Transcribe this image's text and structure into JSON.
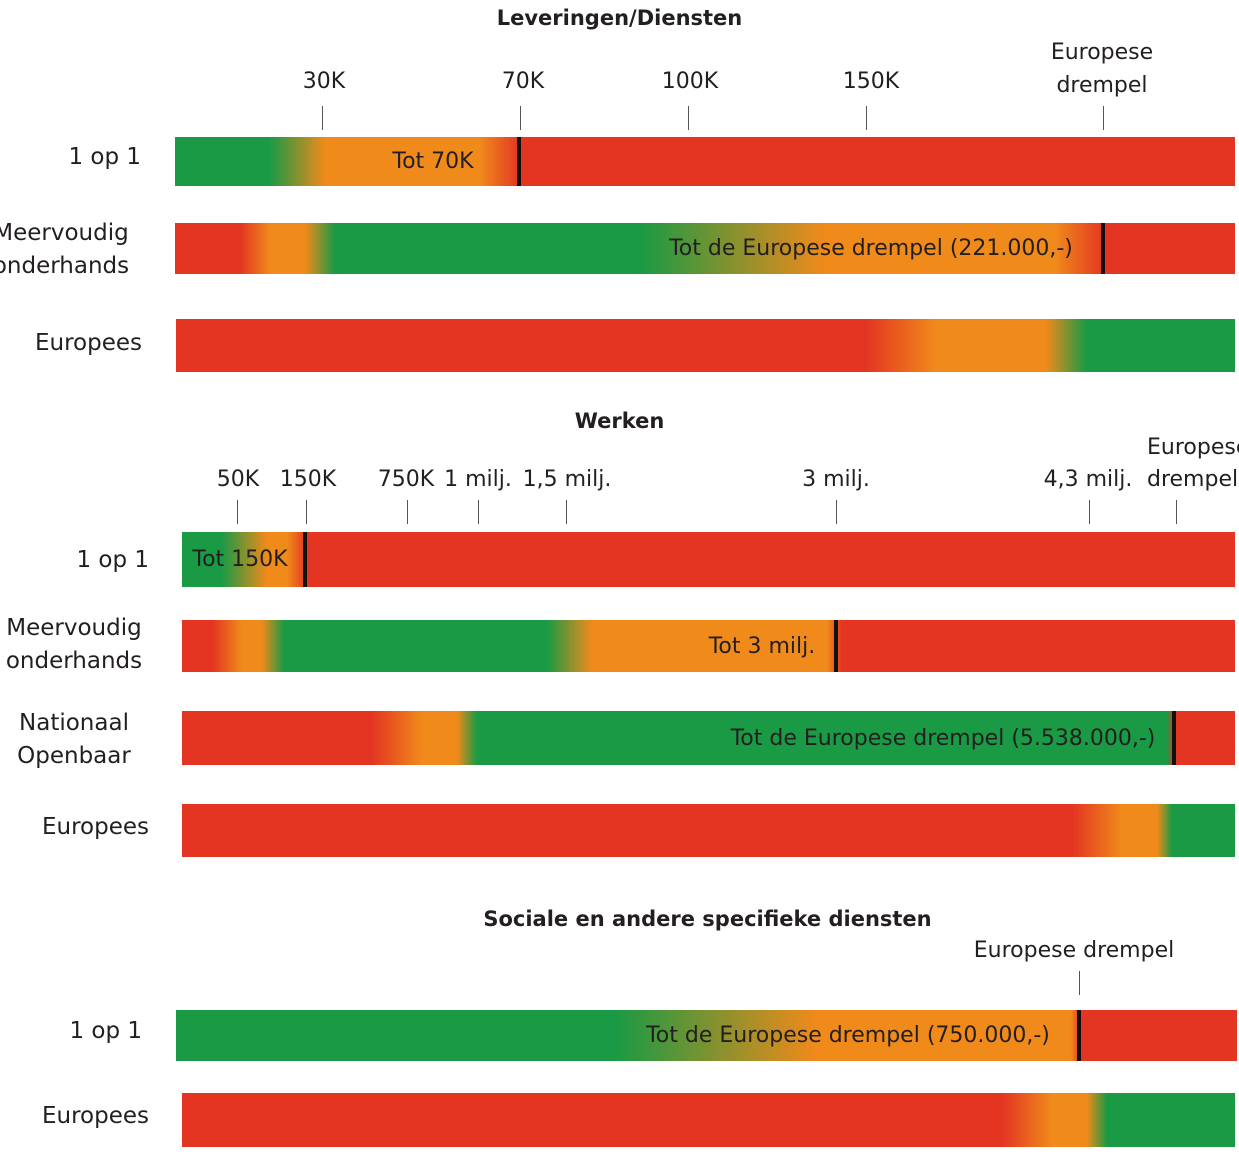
{
  "colors": {
    "green": "#1a9a44",
    "orange": "#f08a1b",
    "red": "#e33522"
  },
  "sections": [
    {
      "title": "Leveringen/Diensten",
      "ticks": [
        "30K",
        "70K",
        "100K",
        "150K",
        "Europese drempel"
      ],
      "rows": [
        {
          "label": "1 op 1",
          "text": "Tot 70K"
        },
        {
          "label": "Meervoudig onderhands",
          "text": "Tot de Europese drempel (221.000,-)"
        },
        {
          "label": "Europees",
          "text": ""
        }
      ]
    },
    {
      "title": "Werken",
      "ticks": [
        "50K",
        "150K",
        "750K",
        "1 milj.",
        "1,5 milj.",
        "3 milj.",
        "4,3 milj.",
        "Europese drempel"
      ],
      "rows": [
        {
          "label": "1 op 1",
          "text": "Tot 150K"
        },
        {
          "label": "Meervoudig onderhands",
          "text": "Tot 3 milj."
        },
        {
          "label": "Nationaal Openbaar",
          "text": "Tot de Europese drempel (5.538.000,-)"
        },
        {
          "label": "Europees",
          "text": ""
        }
      ]
    },
    {
      "title": "Sociale en andere specifieke diensten",
      "ticks": [
        "Europese drempel"
      ],
      "rows": [
        {
          "label": "1 op 1",
          "text": "Tot de Europese drempel (750.000,-)"
        },
        {
          "label": "Europees",
          "text": ""
        }
      ]
    }
  ]
}
